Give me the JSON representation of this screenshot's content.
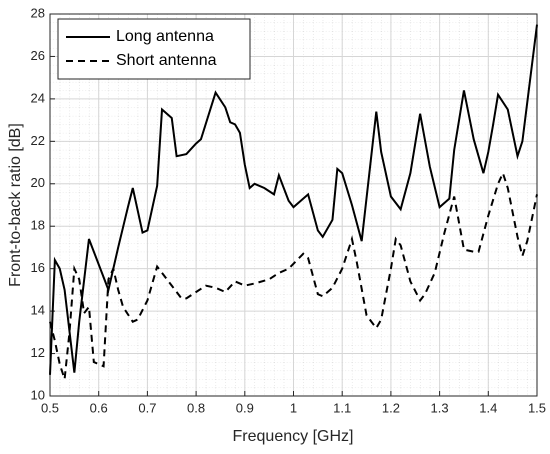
{
  "chart_data": {
    "type": "line",
    "xlabel": "Frequency [GHz]",
    "ylabel": "Front-to-back ratio [dB]",
    "xlim": [
      0.5,
      1.5
    ],
    "xticks": [
      0.5,
      0.6,
      0.7,
      0.8,
      0.9,
      1,
      1.1,
      1.2,
      1.3,
      1.4,
      1.5
    ],
    "ylim": [
      10,
      28
    ],
    "yticks": [
      10,
      12,
      14,
      16,
      18,
      20,
      22,
      24,
      26,
      28
    ],
    "grid": true,
    "minor_grid": true,
    "legend": "upper left",
    "series": [
      {
        "name": "Long antenna",
        "color": "#000000",
        "dash": "solid",
        "x": [
          0.5,
          0.51,
          0.52,
          0.53,
          0.55,
          0.56,
          0.58,
          0.62,
          0.64,
          0.66,
          0.67,
          0.69,
          0.7,
          0.72,
          0.73,
          0.75,
          0.76,
          0.78,
          0.8,
          0.81,
          0.84,
          0.86,
          0.87,
          0.88,
          0.89,
          0.9,
          0.91,
          0.92,
          0.94,
          0.96,
          0.97,
          0.99,
          1.0,
          1.02,
          1.03,
          1.05,
          1.06,
          1.08,
          1.09,
          1.1,
          1.12,
          1.14,
          1.17,
          1.18,
          1.2,
          1.22,
          1.24,
          1.26,
          1.28,
          1.3,
          1.32,
          1.33,
          1.35,
          1.37,
          1.38,
          1.39,
          1.4,
          1.41,
          1.42,
          1.44,
          1.46,
          1.47,
          1.5
        ],
        "values": [
          11.0,
          16.4,
          16.0,
          15.0,
          11.1,
          13.5,
          17.4,
          15.0,
          17.0,
          18.9,
          19.8,
          17.7,
          17.8,
          19.9,
          23.5,
          23.1,
          21.3,
          21.4,
          21.9,
          22.1,
          24.3,
          23.6,
          22.9,
          22.8,
          22.4,
          20.9,
          19.8,
          20.0,
          19.8,
          19.5,
          20.4,
          19.2,
          18.9,
          19.3,
          19.5,
          17.8,
          17.5,
          18.3,
          20.7,
          20.5,
          19.0,
          17.3,
          23.4,
          21.5,
          19.4,
          18.8,
          20.5,
          23.3,
          20.8,
          18.9,
          19.3,
          21.6,
          24.4,
          22.1,
          21.3,
          20.5,
          21.5,
          22.8,
          24.2,
          23.5,
          21.3,
          22.0,
          27.5
        ]
      },
      {
        "name": "Short antenna",
        "color": "#000000",
        "dash": "dashed",
        "x": [
          0.5,
          0.51,
          0.52,
          0.53,
          0.54,
          0.55,
          0.56,
          0.57,
          0.58,
          0.59,
          0.6,
          0.61,
          0.62,
          0.63,
          0.64,
          0.65,
          0.67,
          0.68,
          0.7,
          0.72,
          0.73,
          0.75,
          0.77,
          0.78,
          0.8,
          0.82,
          0.84,
          0.86,
          0.88,
          0.9,
          0.92,
          0.95,
          0.97,
          0.99,
          1.02,
          1.03,
          1.05,
          1.06,
          1.08,
          1.1,
          1.12,
          1.13,
          1.15,
          1.17,
          1.18,
          1.2,
          1.21,
          1.22,
          1.24,
          1.26,
          1.27,
          1.29,
          1.31,
          1.33,
          1.35,
          1.37,
          1.38,
          1.4,
          1.42,
          1.43,
          1.44,
          1.46,
          1.47,
          1.48,
          1.5
        ],
        "values": [
          13.5,
          12.6,
          11.5,
          10.8,
          13.0,
          16.0,
          15.5,
          13.9,
          14.2,
          11.6,
          11.5,
          11.4,
          15.5,
          16.0,
          15.0,
          14.2,
          13.5,
          13.6,
          14.5,
          16.1,
          15.8,
          15.2,
          14.6,
          14.6,
          14.9,
          15.2,
          15.1,
          14.9,
          15.4,
          15.2,
          15.3,
          15.5,
          15.8,
          16.0,
          16.7,
          16.5,
          14.8,
          14.7,
          15.1,
          16.0,
          17.4,
          16.3,
          13.8,
          13.2,
          13.6,
          16.0,
          17.4,
          17.1,
          15.4,
          14.5,
          14.8,
          15.8,
          17.7,
          19.4,
          16.9,
          16.8,
          16.8,
          18.5,
          20.0,
          20.5,
          19.8,
          17.5,
          16.6,
          17.3,
          19.5
        ]
      }
    ]
  }
}
